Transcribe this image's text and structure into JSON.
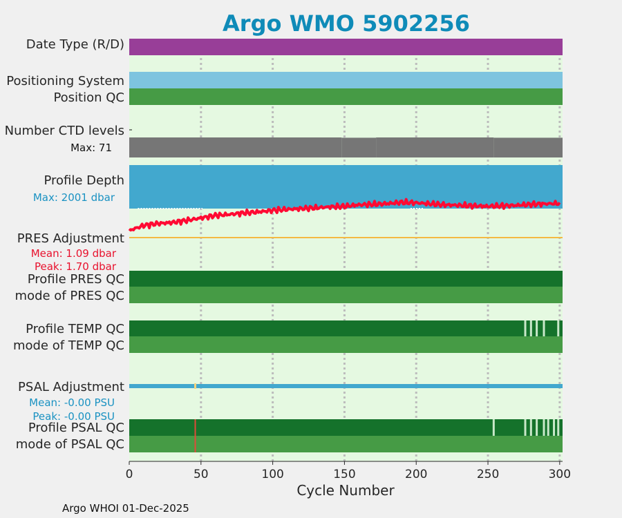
{
  "chart_data": {
    "type": "bar",
    "title": "Argo WMO 5902256",
    "xlabel": "Cycle Number",
    "xlim": [
      0,
      302
    ],
    "xticks": [
      0,
      50,
      100,
      150,
      200,
      250,
      300
    ],
    "grid": "vertical dotted",
    "footer": "Argo WHOI 01-Dec-2025",
    "rows": {
      "date_type": {
        "label": "Date Type (R/D)",
        "color": "#983e98"
      },
      "positioning_system": {
        "label": "Positioning System",
        "color": "#7ec4df"
      },
      "position_qc": {
        "label": "Position QC",
        "color": "#469b45"
      },
      "ctd_levels": {
        "label": "Number CTD levels",
        "max_label": "Max: 71",
        "max": 71,
        "color": "#767676"
      },
      "profile_depth": {
        "label": "Profile Depth",
        "max_label": "Max: 2001 dbar",
        "max": 2001,
        "color": "#42a8ce"
      },
      "pres_adjustment": {
        "label": "PRES Adjustment",
        "mean_label": "Mean: 1.09 dbar",
        "peak_label": "Peak: 1.70 dbar",
        "mean": 1.09,
        "peak": 1.7,
        "color": "#ff0a33"
      },
      "profile_pres_qc": {
        "label": "Profile PRES QC",
        "color": "#15722b"
      },
      "mode_pres_qc": {
        "label": "mode of PRES QC",
        "color": "#469b45"
      },
      "profile_temp_qc": {
        "label": "Profile TEMP QC",
        "color": "#15722b"
      },
      "mode_temp_qc": {
        "label": "mode of TEMP QC",
        "color": "#469b45"
      },
      "psal_adjustment": {
        "label": "PSAL Adjustment",
        "mean_label": "Mean: -0.00 PSU",
        "peak_label": "Peak: -0.00 PSU",
        "mean": -0.0,
        "peak": -0.0,
        "color": "#42a8ce"
      },
      "profile_psal_qc": {
        "label": "Profile PSAL QC",
        "color": "#15722b"
      },
      "mode_psal_qc": {
        "label": "mode of PSAL QC",
        "color": "#469b45"
      }
    },
    "ctd_level_changes": [
      {
        "x": [
          0,
          148
        ],
        "level": 71
      },
      {
        "x": [
          148,
          172
        ],
        "level": 70
      },
      {
        "x": [
          172,
          254
        ],
        "level": 71
      },
      {
        "x": [
          254,
          302
        ],
        "level": 70
      }
    ],
    "profile_depth_dotted_cycles": [
      6,
      51,
      196,
      205
    ],
    "pres_adjustment_trend": {
      "x": [
        0,
        10,
        20,
        30,
        40,
        50,
        60,
        70,
        80,
        90,
        100,
        110,
        120,
        130,
        140,
        150,
        160,
        170,
        180,
        190,
        200,
        210,
        220,
        230,
        240,
        250,
        260,
        270,
        280,
        290,
        300
      ],
      "y": [
        0.28,
        0.48,
        0.56,
        0.6,
        0.68,
        0.78,
        0.88,
        0.92,
        0.98,
        1.02,
        1.08,
        1.12,
        1.15,
        1.18,
        1.22,
        1.24,
        1.3,
        1.32,
        1.35,
        1.4,
        1.38,
        1.34,
        1.3,
        1.28,
        1.26,
        1.24,
        1.26,
        1.28,
        1.32,
        1.34,
        1.36
      ]
    },
    "temp_qc_light_cycles": [
      276,
      280,
      284,
      289,
      299
    ],
    "psal_qc_light_cycles": [
      254,
      276,
      280,
      284,
      289,
      292,
      296,
      299
    ],
    "psal_qc_bad_cycle": 46,
    "psal_adjustment_marked_cycle": 46,
    "qc_light_color": "#c9e8c9",
    "qc_bad_color": "#e04a3a"
  }
}
